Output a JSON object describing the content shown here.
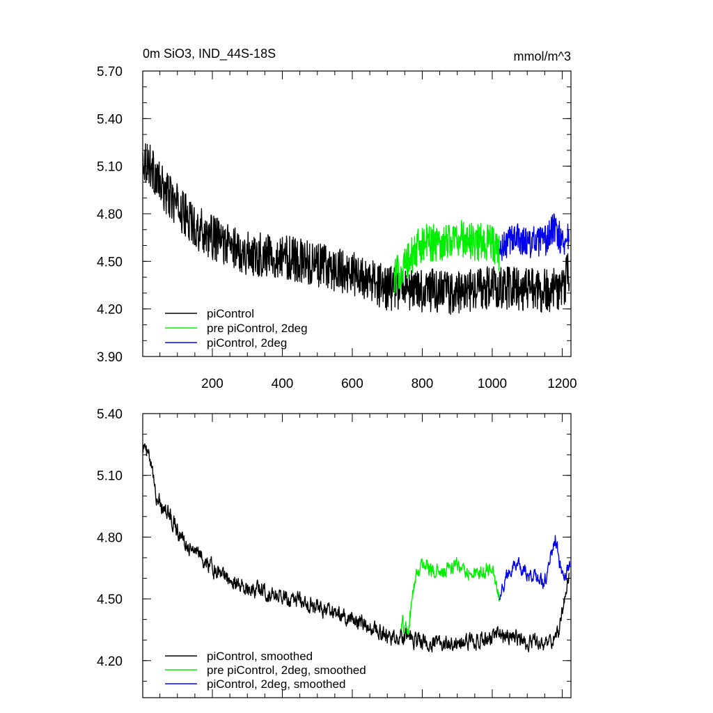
{
  "colors": {
    "piControl": "#000000",
    "pre_2deg": "#00ee00",
    "pi_2deg": "#0000ee"
  },
  "chart_data": [
    {
      "type": "line",
      "title": "0m SiO3, IND_44S-18S",
      "units": "mmol/m^3",
      "xlim": [
        1,
        1225
      ],
      "ylim": [
        3.9,
        5.7
      ],
      "xticks": [
        200,
        400,
        600,
        800,
        1000,
        1200
      ],
      "xtick_labels": [
        "200",
        "400",
        "600",
        "800",
        "1000",
        "1200"
      ],
      "yticks": [
        3.9,
        4.2,
        4.5,
        4.8,
        5.1,
        5.4,
        5.7
      ],
      "ytick_labels": [
        "3.90",
        "4.20",
        "4.50",
        "4.80",
        "5.10",
        "5.40",
        "5.70"
      ],
      "legend_location": "bottom-left",
      "series": [
        {
          "name": "piControl",
          "color": "#000000",
          "noise": 0.14,
          "anchors": [
            [
              1,
              5.15
            ],
            [
              20,
              5.12
            ],
            [
              50,
              4.98
            ],
            [
              100,
              4.85
            ],
            [
              150,
              4.72
            ],
            [
              200,
              4.65
            ],
            [
              300,
              4.55
            ],
            [
              400,
              4.53
            ],
            [
              500,
              4.48
            ],
            [
              600,
              4.42
            ],
            [
              700,
              4.33
            ],
            [
              800,
              4.32
            ],
            [
              900,
              4.3
            ],
            [
              1000,
              4.34
            ],
            [
              1100,
              4.32
            ],
            [
              1200,
              4.32
            ],
            [
              1220,
              4.45
            ]
          ]
        },
        {
          "name": "pre piControl, 2deg",
          "color": "#00ee00",
          "noise": 0.12,
          "anchors": [
            [
              720,
              4.4
            ],
            [
              760,
              4.5
            ],
            [
              800,
              4.62
            ],
            [
              850,
              4.62
            ],
            [
              900,
              4.65
            ],
            [
              950,
              4.62
            ],
            [
              1000,
              4.62
            ],
            [
              1020,
              4.55
            ]
          ]
        },
        {
          "name": "piControl, 2deg",
          "color": "#0000ee",
          "noise": 0.1,
          "anchors": [
            [
              1020,
              4.55
            ],
            [
              1060,
              4.66
            ],
            [
              1100,
              4.62
            ],
            [
              1150,
              4.62
            ],
            [
              1180,
              4.72
            ],
            [
              1200,
              4.62
            ],
            [
              1220,
              4.66
            ]
          ]
        }
      ]
    },
    {
      "type": "line",
      "xlim": [
        1,
        1225
      ],
      "ylim": [
        4.02,
        5.4
      ],
      "xticks": [
        200,
        400,
        600,
        800,
        1000,
        1200
      ],
      "yticks": [
        4.2,
        4.5,
        4.8,
        5.1,
        5.4
      ],
      "ytick_labels": [
        "4.20",
        "4.50",
        "4.80",
        "5.10",
        "5.40"
      ],
      "legend_location": "bottom-left",
      "series": [
        {
          "name": "piControl, smoothed",
          "color": "#000000",
          "noise": 0.07,
          "anchors": [
            [
              1,
              5.25
            ],
            [
              20,
              5.18
            ],
            [
              40,
              5.0
            ],
            [
              80,
              4.9
            ],
            [
              120,
              4.78
            ],
            [
              160,
              4.72
            ],
            [
              200,
              4.65
            ],
            [
              300,
              4.55
            ],
            [
              400,
              4.52
            ],
            [
              500,
              4.46
            ],
            [
              600,
              4.4
            ],
            [
              700,
              4.32
            ],
            [
              800,
              4.3
            ],
            [
              900,
              4.28
            ],
            [
              1000,
              4.32
            ],
            [
              1100,
              4.3
            ],
            [
              1150,
              4.28
            ],
            [
              1190,
              4.32
            ],
            [
              1210,
              4.55
            ],
            [
              1220,
              4.62
            ]
          ]
        },
        {
          "name": "pre piControl, 2deg, smoothed",
          "color": "#00ee00",
          "noise": 0.07,
          "anchors": [
            [
              740,
              4.38
            ],
            [
              760,
              4.35
            ],
            [
              780,
              4.6
            ],
            [
              800,
              4.68
            ],
            [
              850,
              4.62
            ],
            [
              900,
              4.66
            ],
            [
              950,
              4.62
            ],
            [
              1000,
              4.66
            ],
            [
              1020,
              4.52
            ]
          ]
        },
        {
          "name": "piControl, 2deg, smoothed",
          "color": "#0000ee",
          "noise": 0.06,
          "anchors": [
            [
              1020,
              4.52
            ],
            [
              1060,
              4.68
            ],
            [
              1100,
              4.62
            ],
            [
              1150,
              4.58
            ],
            [
              1180,
              4.8
            ],
            [
              1200,
              4.6
            ],
            [
              1222,
              4.66
            ]
          ]
        }
      ]
    }
  ]
}
